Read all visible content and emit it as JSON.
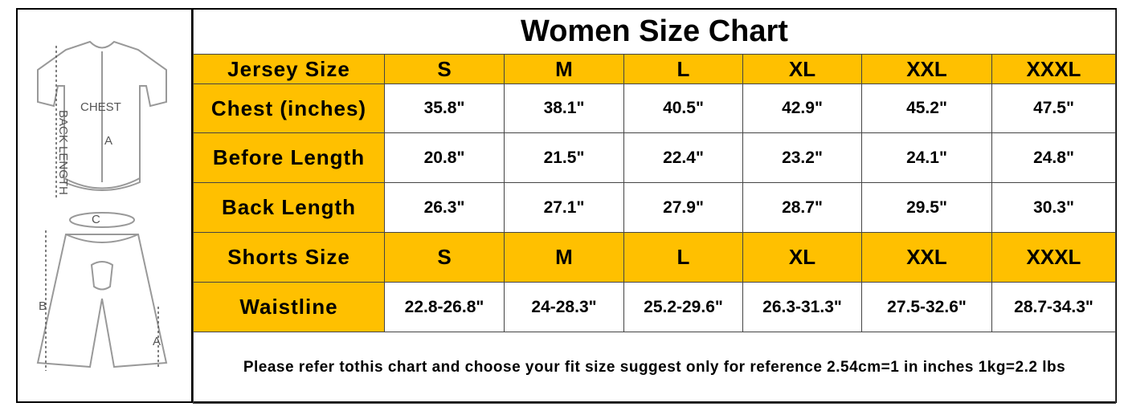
{
  "title": "Women Size Chart",
  "figure": {
    "chest": "CHEST",
    "back_length": "BACK LENGTH",
    "jersey_a": "A",
    "c": "C",
    "b": "B",
    "shorts_a": "A"
  },
  "table": {
    "rows": [
      {
        "fill": "#ffc000",
        "cells": [
          "Jersey Size",
          "S",
          "M",
          "L",
          "XL",
          "XXL",
          "XXXL"
        ]
      },
      {
        "fill": "#ffffff",
        "cells": [
          "Chest (inches)",
          "35.8\"",
          "38.1\"",
          "40.5\"",
          "42.9\"",
          "45.2\"",
          "47.5\""
        ]
      },
      {
        "fill": "#ffffff",
        "cells": [
          "Before Length",
          "20.8\"",
          "21.5\"",
          "22.4\"",
          "23.2\"",
          "24.1\"",
          "24.8\""
        ]
      },
      {
        "fill": "#ffffff",
        "cells": [
          "Back Length",
          "26.3\"",
          "27.1\"",
          "27.9\"",
          "28.7\"",
          "29.5\"",
          "30.3\""
        ]
      },
      {
        "fill": "#ffc000",
        "cells": [
          "Shorts Size",
          "S",
          "M",
          "L",
          "XL",
          "XXL",
          "XXXL"
        ]
      },
      {
        "fill": "#ffffff",
        "cells": [
          "Waistline",
          "22.8-26.8\"",
          "24-28.3\"",
          "25.2-29.6\"",
          "26.3-31.3\"",
          "27.5-32.6\"",
          "28.7-34.3\""
        ]
      }
    ]
  },
  "note": "Please refer tothis chart and choose your fit size suggest only for reference 2.54cm=1 in inches 1kg=2.2 lbs"
}
